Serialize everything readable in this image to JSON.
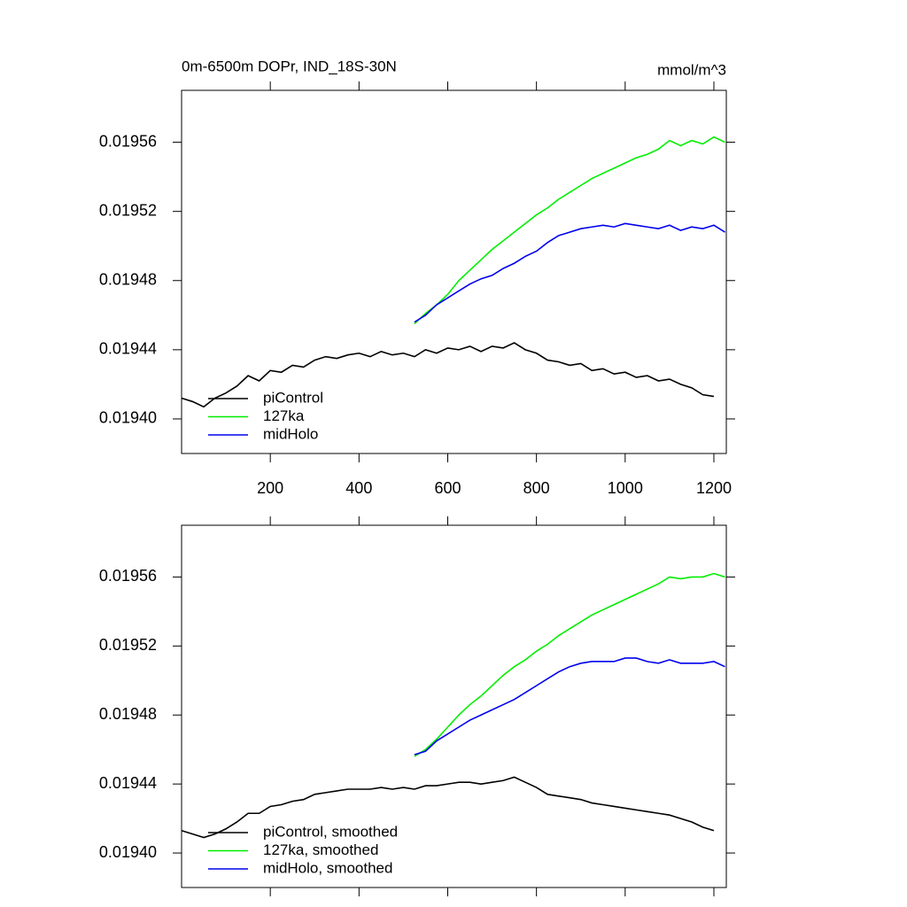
{
  "chart_data": [
    {
      "type": "line",
      "title": "0m-6500m DOPr, IND_18S-30N",
      "units": "mmol/m^3",
      "xlim": [
        0,
        1228
      ],
      "ylim": [
        0.01938,
        0.01959
      ],
      "xticks": [
        200,
        400,
        600,
        800,
        1000,
        1200
      ],
      "xtick_labels": true,
      "yticks": [
        {
          "value": 0.0194,
          "label": "0.01940"
        },
        0.01944,
        0.01948,
        0.01952,
        0.01956
      ],
      "legend": "lower left",
      "x": [
        0,
        25,
        50,
        75,
        100,
        125,
        150,
        175,
        200,
        225,
        250,
        275,
        300,
        325,
        350,
        375,
        400,
        425,
        450,
        475,
        500,
        525,
        550,
        575,
        600,
        625,
        650,
        675,
        700,
        725,
        750,
        775,
        800,
        825,
        850,
        875,
        900,
        925,
        950,
        975,
        1000,
        1025,
        1050,
        1075,
        1100,
        1125,
        1150,
        1175,
        1200,
        1225
      ],
      "series": [
        {
          "name": "piControl",
          "color": "#000000",
          "values": [
            0.019412,
            0.01941,
            0.019407,
            0.019412,
            0.019415,
            0.019419,
            0.019425,
            0.019422,
            0.019428,
            0.019427,
            0.019431,
            0.01943,
            0.019434,
            0.019436,
            0.019435,
            0.019437,
            0.019438,
            0.019436,
            0.019439,
            0.019437,
            0.019438,
            0.019436,
            0.01944,
            0.019438,
            0.019441,
            0.01944,
            0.019442,
            0.019439,
            0.019442,
            0.019441,
            0.019444,
            0.01944,
            0.019438,
            0.019434,
            0.019433,
            0.019431,
            0.019432,
            0.019428,
            0.019429,
            0.019426,
            0.019427,
            0.019424,
            0.019425,
            0.019422,
            0.019423,
            0.01942,
            0.019418,
            0.019414,
            0.019413,
            null
          ]
        },
        {
          "name": "127ka",
          "color": "#00ee00",
          "values": [
            null,
            null,
            null,
            null,
            null,
            null,
            null,
            null,
            null,
            null,
            null,
            null,
            null,
            null,
            null,
            null,
            null,
            null,
            null,
            null,
            null,
            0.019455,
            0.019461,
            0.019466,
            0.019472,
            0.01948,
            0.019486,
            0.019492,
            0.019498,
            0.019503,
            0.019508,
            0.019513,
            0.019518,
            0.019522,
            0.019527,
            0.019531,
            0.019535,
            0.019539,
            0.019542,
            0.019545,
            0.019548,
            0.019551,
            0.019553,
            0.019556,
            0.019561,
            0.019558,
            0.019561,
            0.019559,
            0.019563,
            0.01956
          ]
        },
        {
          "name": "midHolo",
          "color": "#0000ee",
          "values": [
            null,
            null,
            null,
            null,
            null,
            null,
            null,
            null,
            null,
            null,
            null,
            null,
            null,
            null,
            null,
            null,
            null,
            null,
            null,
            null,
            null,
            0.019456,
            0.01946,
            0.019466,
            0.01947,
            0.019474,
            0.019478,
            0.019481,
            0.019483,
            0.019487,
            0.01949,
            0.019494,
            0.019497,
            0.019502,
            0.019506,
            0.019508,
            0.01951,
            0.019511,
            0.019512,
            0.019511,
            0.019513,
            0.019512,
            0.019511,
            0.01951,
            0.019512,
            0.019509,
            0.019511,
            0.01951,
            0.019512,
            0.019508
          ]
        }
      ]
    },
    {
      "type": "line",
      "xlim": [
        0,
        1228
      ],
      "ylim": [
        0.01938,
        0.01959
      ],
      "xticks": [
        200,
        400,
        600,
        800,
        1000,
        1200
      ],
      "xtick_labels": false,
      "yticks": [
        {
          "value": 0.0194,
          "label": "0.01940"
        },
        0.01944,
        0.01948,
        0.01952,
        0.01956
      ],
      "legend": "lower left",
      "x": [
        0,
        25,
        50,
        75,
        100,
        125,
        150,
        175,
        200,
        225,
        250,
        275,
        300,
        325,
        350,
        375,
        400,
        425,
        450,
        475,
        500,
        525,
        550,
        575,
        600,
        625,
        650,
        675,
        700,
        725,
        750,
        775,
        800,
        825,
        850,
        875,
        900,
        925,
        950,
        975,
        1000,
        1025,
        1050,
        1075,
        1100,
        1125,
        1150,
        1175,
        1200,
        1225
      ],
      "series": [
        {
          "name": "piControl, smoothed",
          "color": "#000000",
          "values": [
            0.019413,
            0.019411,
            0.019409,
            0.019411,
            0.019414,
            0.019418,
            0.019423,
            0.019423,
            0.019427,
            0.019428,
            0.01943,
            0.019431,
            0.019434,
            0.019435,
            0.019436,
            0.019437,
            0.019437,
            0.019437,
            0.019438,
            0.019437,
            0.019438,
            0.019437,
            0.019439,
            0.019439,
            0.01944,
            0.019441,
            0.019441,
            0.01944,
            0.019441,
            0.019442,
            0.019444,
            0.019441,
            0.019438,
            0.019434,
            0.019433,
            0.019432,
            0.019431,
            0.019429,
            0.019428,
            0.019427,
            0.019426,
            0.019425,
            0.019424,
            0.019423,
            0.019422,
            0.01942,
            0.019418,
            0.019415,
            0.019413,
            null
          ]
        },
        {
          "name": "127ka, smoothed",
          "color": "#00ee00",
          "values": [
            null,
            null,
            null,
            null,
            null,
            null,
            null,
            null,
            null,
            null,
            null,
            null,
            null,
            null,
            null,
            null,
            null,
            null,
            null,
            null,
            null,
            0.019456,
            0.01946,
            0.019466,
            0.019473,
            0.01948,
            0.019486,
            0.019491,
            0.019497,
            0.019503,
            0.019508,
            0.019512,
            0.019517,
            0.019521,
            0.019526,
            0.01953,
            0.019534,
            0.019538,
            0.019541,
            0.019544,
            0.019547,
            0.01955,
            0.019553,
            0.019556,
            0.01956,
            0.019559,
            0.01956,
            0.01956,
            0.019562,
            0.01956
          ]
        },
        {
          "name": "midHolo, smoothed",
          "color": "#0000ee",
          "values": [
            null,
            null,
            null,
            null,
            null,
            null,
            null,
            null,
            null,
            null,
            null,
            null,
            null,
            null,
            null,
            null,
            null,
            null,
            null,
            null,
            null,
            0.019457,
            0.019459,
            0.019465,
            0.019469,
            0.019473,
            0.019477,
            0.01948,
            0.019483,
            0.019486,
            0.019489,
            0.019493,
            0.019497,
            0.019501,
            0.019505,
            0.019508,
            0.01951,
            0.019511,
            0.019511,
            0.019511,
            0.019513,
            0.019513,
            0.019511,
            0.01951,
            0.019512,
            0.01951,
            0.01951,
            0.01951,
            0.019511,
            0.019508
          ]
        }
      ]
    }
  ]
}
